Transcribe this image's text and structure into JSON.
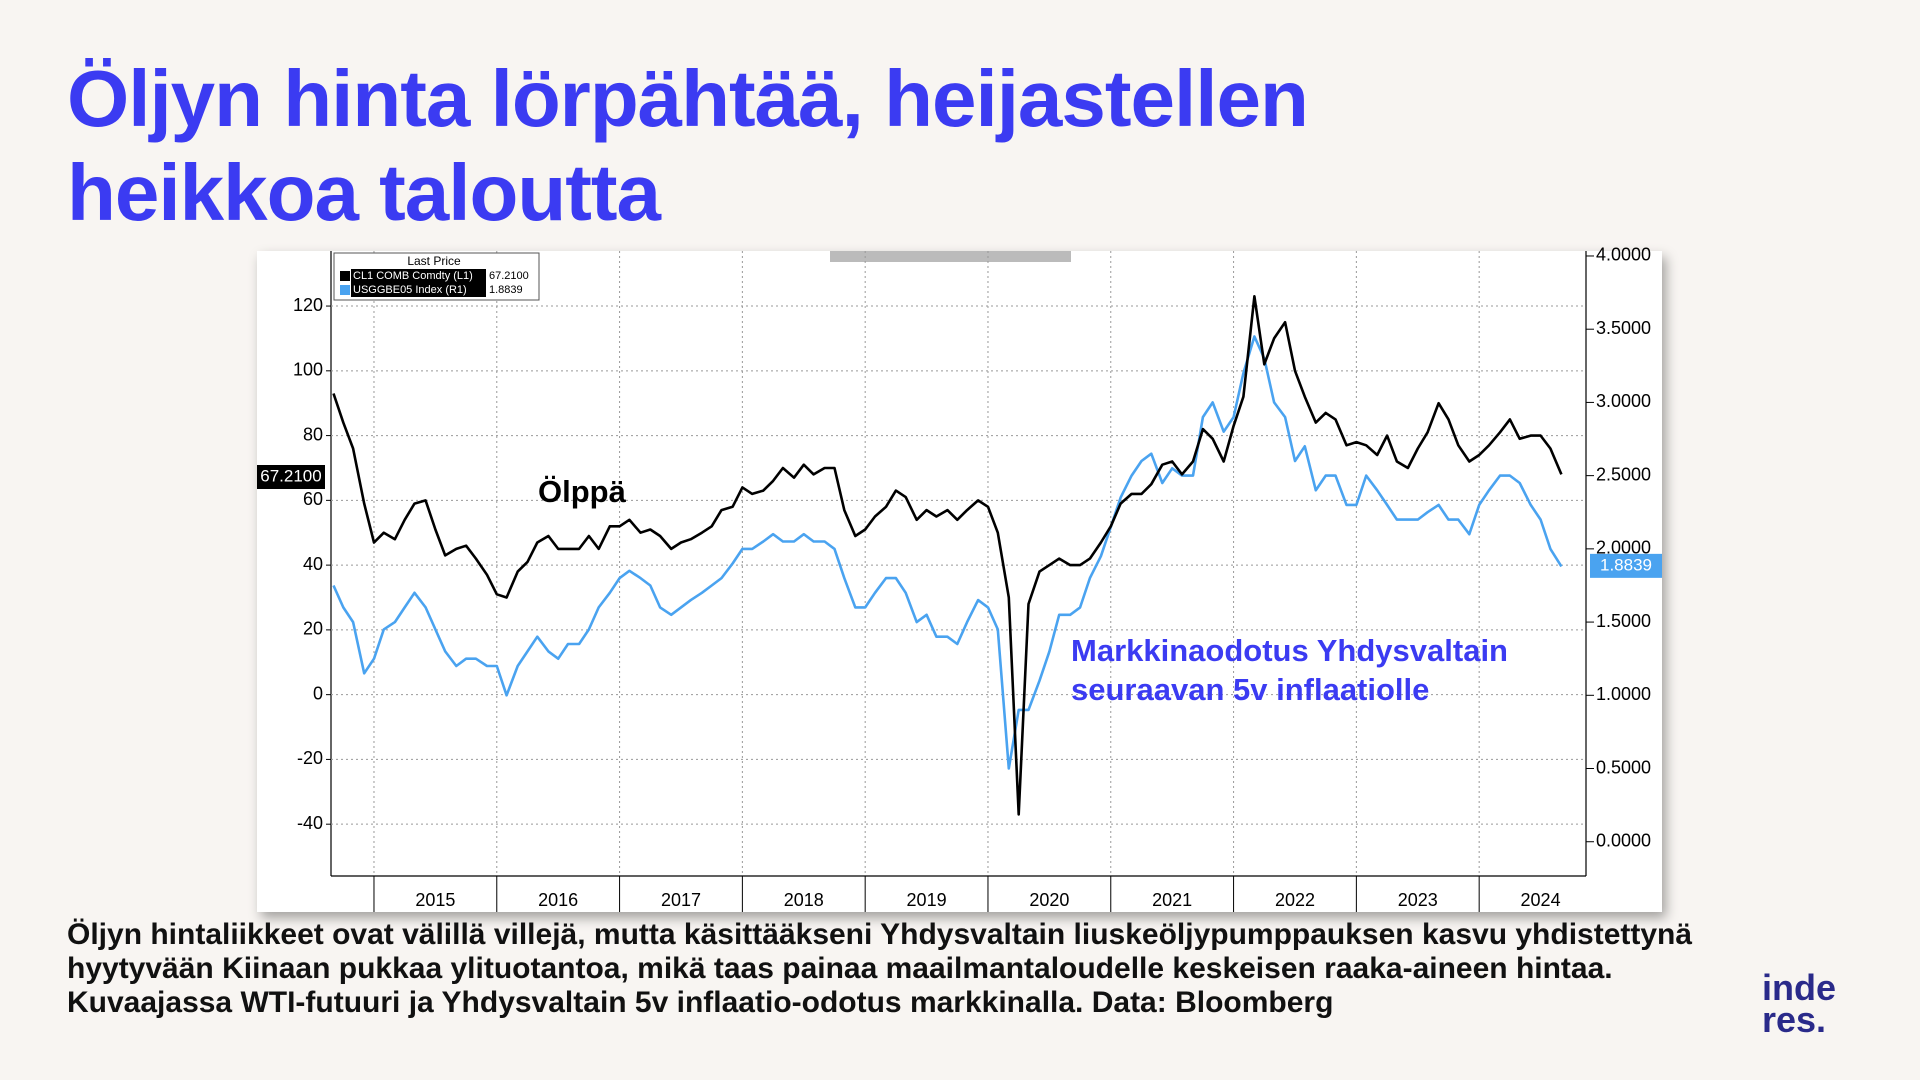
{
  "title": "Öljyn hinta lörpähtää, heijastellen heikkoa taloutta",
  "caption": "Öljyn hintaliikkeet ovat välillä villejä, mutta käsittääkseni Yhdysvaltain liuskeöljypumppauksen kasvu yhdistettynä hyytyvään Kiinaan pukkaa ylituotantoa, mikä taas painaa maailmantaloudelle keskeisen raaka-aineen hintaa. Kuvaajassa WTI-futuuri ja Yhdysvaltain 5v inflaatio-odotus markkinalla. Data: Bloomberg",
  "logo": [
    "inde",
    "res."
  ],
  "chart_data": {
    "type": "line",
    "legend_title": "Last Price",
    "annotations": [
      "Ölppä",
      "Markkinaodotus Yhdysvaltain",
      "seuraavan 5v inflaatiolle"
    ],
    "x": [
      2014.67,
      2014.75,
      2014.83,
      2014.92,
      2015,
      2015.08,
      2015.17,
      2015.25,
      2015.33,
      2015.42,
      2015.5,
      2015.58,
      2015.67,
      2015.75,
      2015.83,
      2015.92,
      2016,
      2016.08,
      2016.17,
      2016.25,
      2016.33,
      2016.42,
      2016.5,
      2016.58,
      2016.67,
      2016.75,
      2016.83,
      2016.92,
      2017,
      2017.08,
      2017.17,
      2017.25,
      2017.33,
      2017.42,
      2017.5,
      2017.58,
      2017.67,
      2017.75,
      2017.83,
      2017.92,
      2018,
      2018.08,
      2018.17,
      2018.25,
      2018.33,
      2018.42,
      2018.5,
      2018.58,
      2018.67,
      2018.75,
      2018.83,
      2018.92,
      2019,
      2019.08,
      2019.17,
      2019.25,
      2019.33,
      2019.42,
      2019.5,
      2019.58,
      2019.67,
      2019.75,
      2019.83,
      2019.92,
      2020,
      2020.08,
      2020.17,
      2020.25,
      2020.33,
      2020.42,
      2020.5,
      2020.58,
      2020.67,
      2020.75,
      2020.83,
      2020.92,
      2021,
      2021.08,
      2021.17,
      2021.25,
      2021.33,
      2021.42,
      2021.5,
      2021.58,
      2021.67,
      2021.75,
      2021.83,
      2021.92,
      2022,
      2022.08,
      2022.17,
      2022.25,
      2022.33,
      2022.42,
      2022.5,
      2022.58,
      2022.67,
      2022.75,
      2022.83,
      2022.92,
      2023,
      2023.08,
      2023.17,
      2023.25,
      2023.33,
      2023.42,
      2023.5,
      2023.58,
      2023.67,
      2023.75,
      2023.83,
      2023.92,
      2024,
      2024.08,
      2024.17,
      2024.25,
      2024.33,
      2024.42,
      2024.5,
      2024.58,
      2024.67
    ],
    "series": [
      {
        "name": "CL1 COMB Comdty (L1)",
        "color": "#000000",
        "axis": "y",
        "last": {
          "value": 67.21,
          "label": "67.2100"
        },
        "values": [
          93,
          84,
          76,
          59,
          47,
          50,
          48,
          54,
          59,
          60,
          51,
          43,
          45,
          46,
          42,
          37,
          31,
          30,
          38,
          41,
          47,
          49,
          45,
          45,
          45,
          49,
          45,
          52,
          52,
          54,
          50,
          51,
          49,
          45,
          47,
          48,
          50,
          52,
          57,
          58,
          64,
          62,
          63,
          66,
          70,
          67,
          71,
          68,
          70,
          70,
          57,
          49,
          51,
          55,
          58,
          63,
          61,
          54,
          57,
          55,
          57,
          54,
          57,
          60,
          58,
          50,
          30,
          -37,
          28,
          38,
          40,
          42,
          40,
          40,
          42,
          47,
          52,
          59,
          62,
          62,
          65,
          71,
          72,
          68,
          72,
          82,
          79,
          72,
          83,
          92,
          123,
          102,
          110,
          115,
          100,
          92,
          84,
          87,
          85,
          77,
          78,
          77,
          74,
          80,
          72,
          70,
          76,
          81,
          90,
          85,
          77,
          72,
          74,
          77,
          81,
          85,
          79,
          80,
          80,
          76,
          68
        ]
      },
      {
        "name": "USGGBE05 Index (R1)",
        "color": "#4aa3f0",
        "axis": "y2",
        "last": {
          "value": 1.8839,
          "label": "1.8839"
        },
        "values": [
          1.75,
          1.6,
          1.5,
          1.15,
          1.25,
          1.45,
          1.5,
          1.6,
          1.7,
          1.6,
          1.45,
          1.3,
          1.2,
          1.25,
          1.25,
          1.2,
          1.2,
          1.0,
          1.2,
          1.3,
          1.4,
          1.3,
          1.25,
          1.35,
          1.35,
          1.45,
          1.6,
          1.7,
          1.8,
          1.85,
          1.8,
          1.75,
          1.6,
          1.55,
          1.6,
          1.65,
          1.7,
          1.75,
          1.8,
          1.9,
          2.0,
          2.0,
          2.05,
          2.1,
          2.05,
          2.05,
          2.1,
          2.05,
          2.05,
          2.0,
          1.8,
          1.6,
          1.6,
          1.7,
          1.8,
          1.8,
          1.7,
          1.5,
          1.55,
          1.4,
          1.4,
          1.35,
          1.5,
          1.65,
          1.6,
          1.45,
          0.5,
          0.9,
          0.9,
          1.1,
          1.3,
          1.55,
          1.55,
          1.6,
          1.8,
          1.95,
          2.15,
          2.35,
          2.5,
          2.6,
          2.65,
          2.45,
          2.55,
          2.5,
          2.5,
          2.9,
          3.0,
          2.8,
          2.9,
          3.2,
          3.45,
          3.3,
          3.0,
          2.9,
          2.6,
          2.7,
          2.4,
          2.5,
          2.5,
          2.3,
          2.3,
          2.5,
          2.4,
          2.3,
          2.2,
          2.2,
          2.2,
          2.25,
          2.3,
          2.2,
          2.2,
          2.1,
          2.3,
          2.4,
          2.5,
          2.5,
          2.45,
          2.3,
          2.2,
          2.0,
          1.88
        ]
      }
    ],
    "xlim": [
      2014.65,
      2024.87
    ],
    "xticks": [
      {
        "value": 2015.5,
        "label": "2015"
      },
      {
        "value": 2016.5,
        "label": "2016"
      },
      {
        "value": 2017.5,
        "label": "2017"
      },
      {
        "value": 2018.5,
        "label": "2018"
      },
      {
        "value": 2019.5,
        "label": "2019"
      },
      {
        "value": 2020.5,
        "label": "2020"
      },
      {
        "value": 2021.5,
        "label": "2021"
      },
      {
        "value": 2022.5,
        "label": "2022"
      },
      {
        "value": 2023.5,
        "label": "2023"
      },
      {
        "value": 2024.5,
        "label": "2024"
      }
    ],
    "xgrid": [
      2015,
      2016,
      2017,
      2018,
      2019,
      2020,
      2021,
      2022,
      2023,
      2024
    ],
    "ylim": [
      -56,
      137
    ],
    "yticks": [
      -40,
      -20,
      0,
      20,
      40,
      60,
      80,
      100,
      120
    ],
    "y2lim": [
      -0.234,
      4.034
    ],
    "y2ticks": [
      {
        "value": 0,
        "label": "0.0000"
      },
      {
        "value": 0.5,
        "label": "0.5000"
      },
      {
        "value": 1,
        "label": "1.0000"
      },
      {
        "value": 1.5,
        "label": "1.5000"
      },
      {
        "value": 2,
        "label": "2.0000"
      },
      {
        "value": 2.5,
        "label": "2.5000"
      },
      {
        "value": 3,
        "label": "3.0000"
      },
      {
        "value": 3.5,
        "label": "3.5000"
      },
      {
        "value": 4,
        "label": "4.0000"
      }
    ],
    "grid": true
  }
}
